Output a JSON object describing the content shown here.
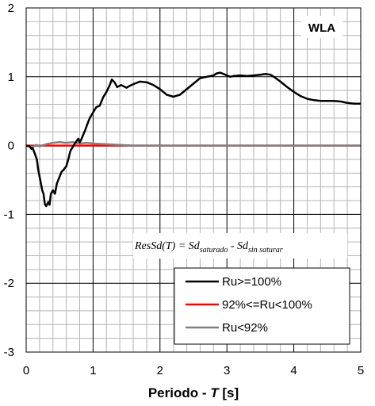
{
  "chart_data": {
    "type": "line",
    "title": "",
    "panel_label": "WLA",
    "xlabel_prefix": "Periodo - ",
    "xlabel_var": "T",
    "xlabel_unit": " [s]",
    "ylabel": "",
    "xlim": [
      0,
      5
    ],
    "ylim": [
      -3,
      2
    ],
    "x_ticks": [
      "0",
      "1",
      "2",
      "3",
      "4",
      "5"
    ],
    "y_ticks": [
      "2",
      "1",
      "0",
      "-1",
      "-2",
      "-3"
    ],
    "grid": true,
    "legend_position": "bottom-right",
    "formula": {
      "lhs": "ResSd(T) = Sd",
      "sub1": "saturado",
      "mid": " - Sd",
      "sub2": "sin saturar"
    },
    "series": [
      {
        "name": "Ru>=100%",
        "color": "#000000",
        "points": [
          [
            0.0,
            0.0
          ],
          [
            0.05,
            -0.01
          ],
          [
            0.08,
            -0.05
          ],
          [
            0.1,
            -0.04
          ],
          [
            0.13,
            -0.12
          ],
          [
            0.16,
            -0.2
          ],
          [
            0.18,
            -0.35
          ],
          [
            0.2,
            -0.45
          ],
          [
            0.22,
            -0.55
          ],
          [
            0.24,
            -0.65
          ],
          [
            0.26,
            -0.7
          ],
          [
            0.28,
            -0.85
          ],
          [
            0.3,
            -0.88
          ],
          [
            0.33,
            -0.82
          ],
          [
            0.35,
            -0.86
          ],
          [
            0.37,
            -0.7
          ],
          [
            0.4,
            -0.65
          ],
          [
            0.43,
            -0.7
          ],
          [
            0.46,
            -0.55
          ],
          [
            0.5,
            -0.45
          ],
          [
            0.53,
            -0.38
          ],
          [
            0.56,
            -0.35
          ],
          [
            0.6,
            -0.3
          ],
          [
            0.63,
            -0.2
          ],
          [
            0.66,
            -0.08
          ],
          [
            0.69,
            -0.03
          ],
          [
            0.72,
            0.02
          ],
          [
            0.75,
            0.06
          ],
          [
            0.78,
            0.1
          ],
          [
            0.8,
            0.05
          ],
          [
            0.82,
            0.08
          ],
          [
            0.85,
            0.15
          ],
          [
            0.88,
            0.22
          ],
          [
            0.91,
            0.3
          ],
          [
            0.95,
            0.4
          ],
          [
            1.0,
            0.48
          ],
          [
            1.05,
            0.56
          ],
          [
            1.1,
            0.58
          ],
          [
            1.15,
            0.7
          ],
          [
            1.2,
            0.78
          ],
          [
            1.25,
            0.88
          ],
          [
            1.28,
            0.96
          ],
          [
            1.32,
            0.92
          ],
          [
            1.36,
            0.85
          ],
          [
            1.42,
            0.88
          ],
          [
            1.5,
            0.84
          ],
          [
            1.55,
            0.87
          ],
          [
            1.62,
            0.9
          ],
          [
            1.7,
            0.93
          ],
          [
            1.8,
            0.92
          ],
          [
            1.9,
            0.88
          ],
          [
            2.0,
            0.82
          ],
          [
            2.05,
            0.78
          ],
          [
            2.1,
            0.74
          ],
          [
            2.2,
            0.71
          ],
          [
            2.3,
            0.74
          ],
          [
            2.4,
            0.82
          ],
          [
            2.5,
            0.9
          ],
          [
            2.6,
            0.98
          ],
          [
            2.7,
            1.0
          ],
          [
            2.8,
            1.02
          ],
          [
            2.85,
            1.05
          ],
          [
            2.9,
            1.06
          ],
          [
            2.95,
            1.04
          ],
          [
            3.0,
            1.02
          ],
          [
            3.05,
            1.0
          ],
          [
            3.1,
            1.01
          ],
          [
            3.2,
            1.02
          ],
          [
            3.3,
            1.01
          ],
          [
            3.4,
            1.02
          ],
          [
            3.5,
            1.03
          ],
          [
            3.58,
            1.04
          ],
          [
            3.65,
            1.03
          ],
          [
            3.7,
            1.0
          ],
          [
            3.8,
            0.93
          ],
          [
            3.9,
            0.85
          ],
          [
            4.0,
            0.78
          ],
          [
            4.1,
            0.72
          ],
          [
            4.2,
            0.68
          ],
          [
            4.3,
            0.66
          ],
          [
            4.4,
            0.65
          ],
          [
            4.6,
            0.65
          ],
          [
            4.7,
            0.64
          ],
          [
            4.8,
            0.62
          ],
          [
            4.9,
            0.61
          ],
          [
            5.0,
            0.61
          ]
        ]
      },
      {
        "name": "92%<=Ru<100%",
        "color": "#ff0000",
        "points": [
          [
            0.0,
            0.0
          ],
          [
            5.0,
            0.0
          ]
        ]
      },
      {
        "name": "Ru<92%",
        "color": "#808080",
        "points": [
          [
            0.0,
            0.0
          ],
          [
            0.1,
            -0.02
          ],
          [
            0.15,
            0.01
          ],
          [
            0.2,
            -0.01
          ],
          [
            0.3,
            0.02
          ],
          [
            0.4,
            0.04
          ],
          [
            0.5,
            0.05
          ],
          [
            0.6,
            0.04
          ],
          [
            0.7,
            0.05
          ],
          [
            0.8,
            0.03
          ],
          [
            0.9,
            0.04
          ],
          [
            1.0,
            0.03
          ],
          [
            1.2,
            0.02
          ],
          [
            1.4,
            0.01
          ],
          [
            1.6,
            0.0
          ],
          [
            5.0,
            0.0
          ]
        ]
      }
    ]
  }
}
